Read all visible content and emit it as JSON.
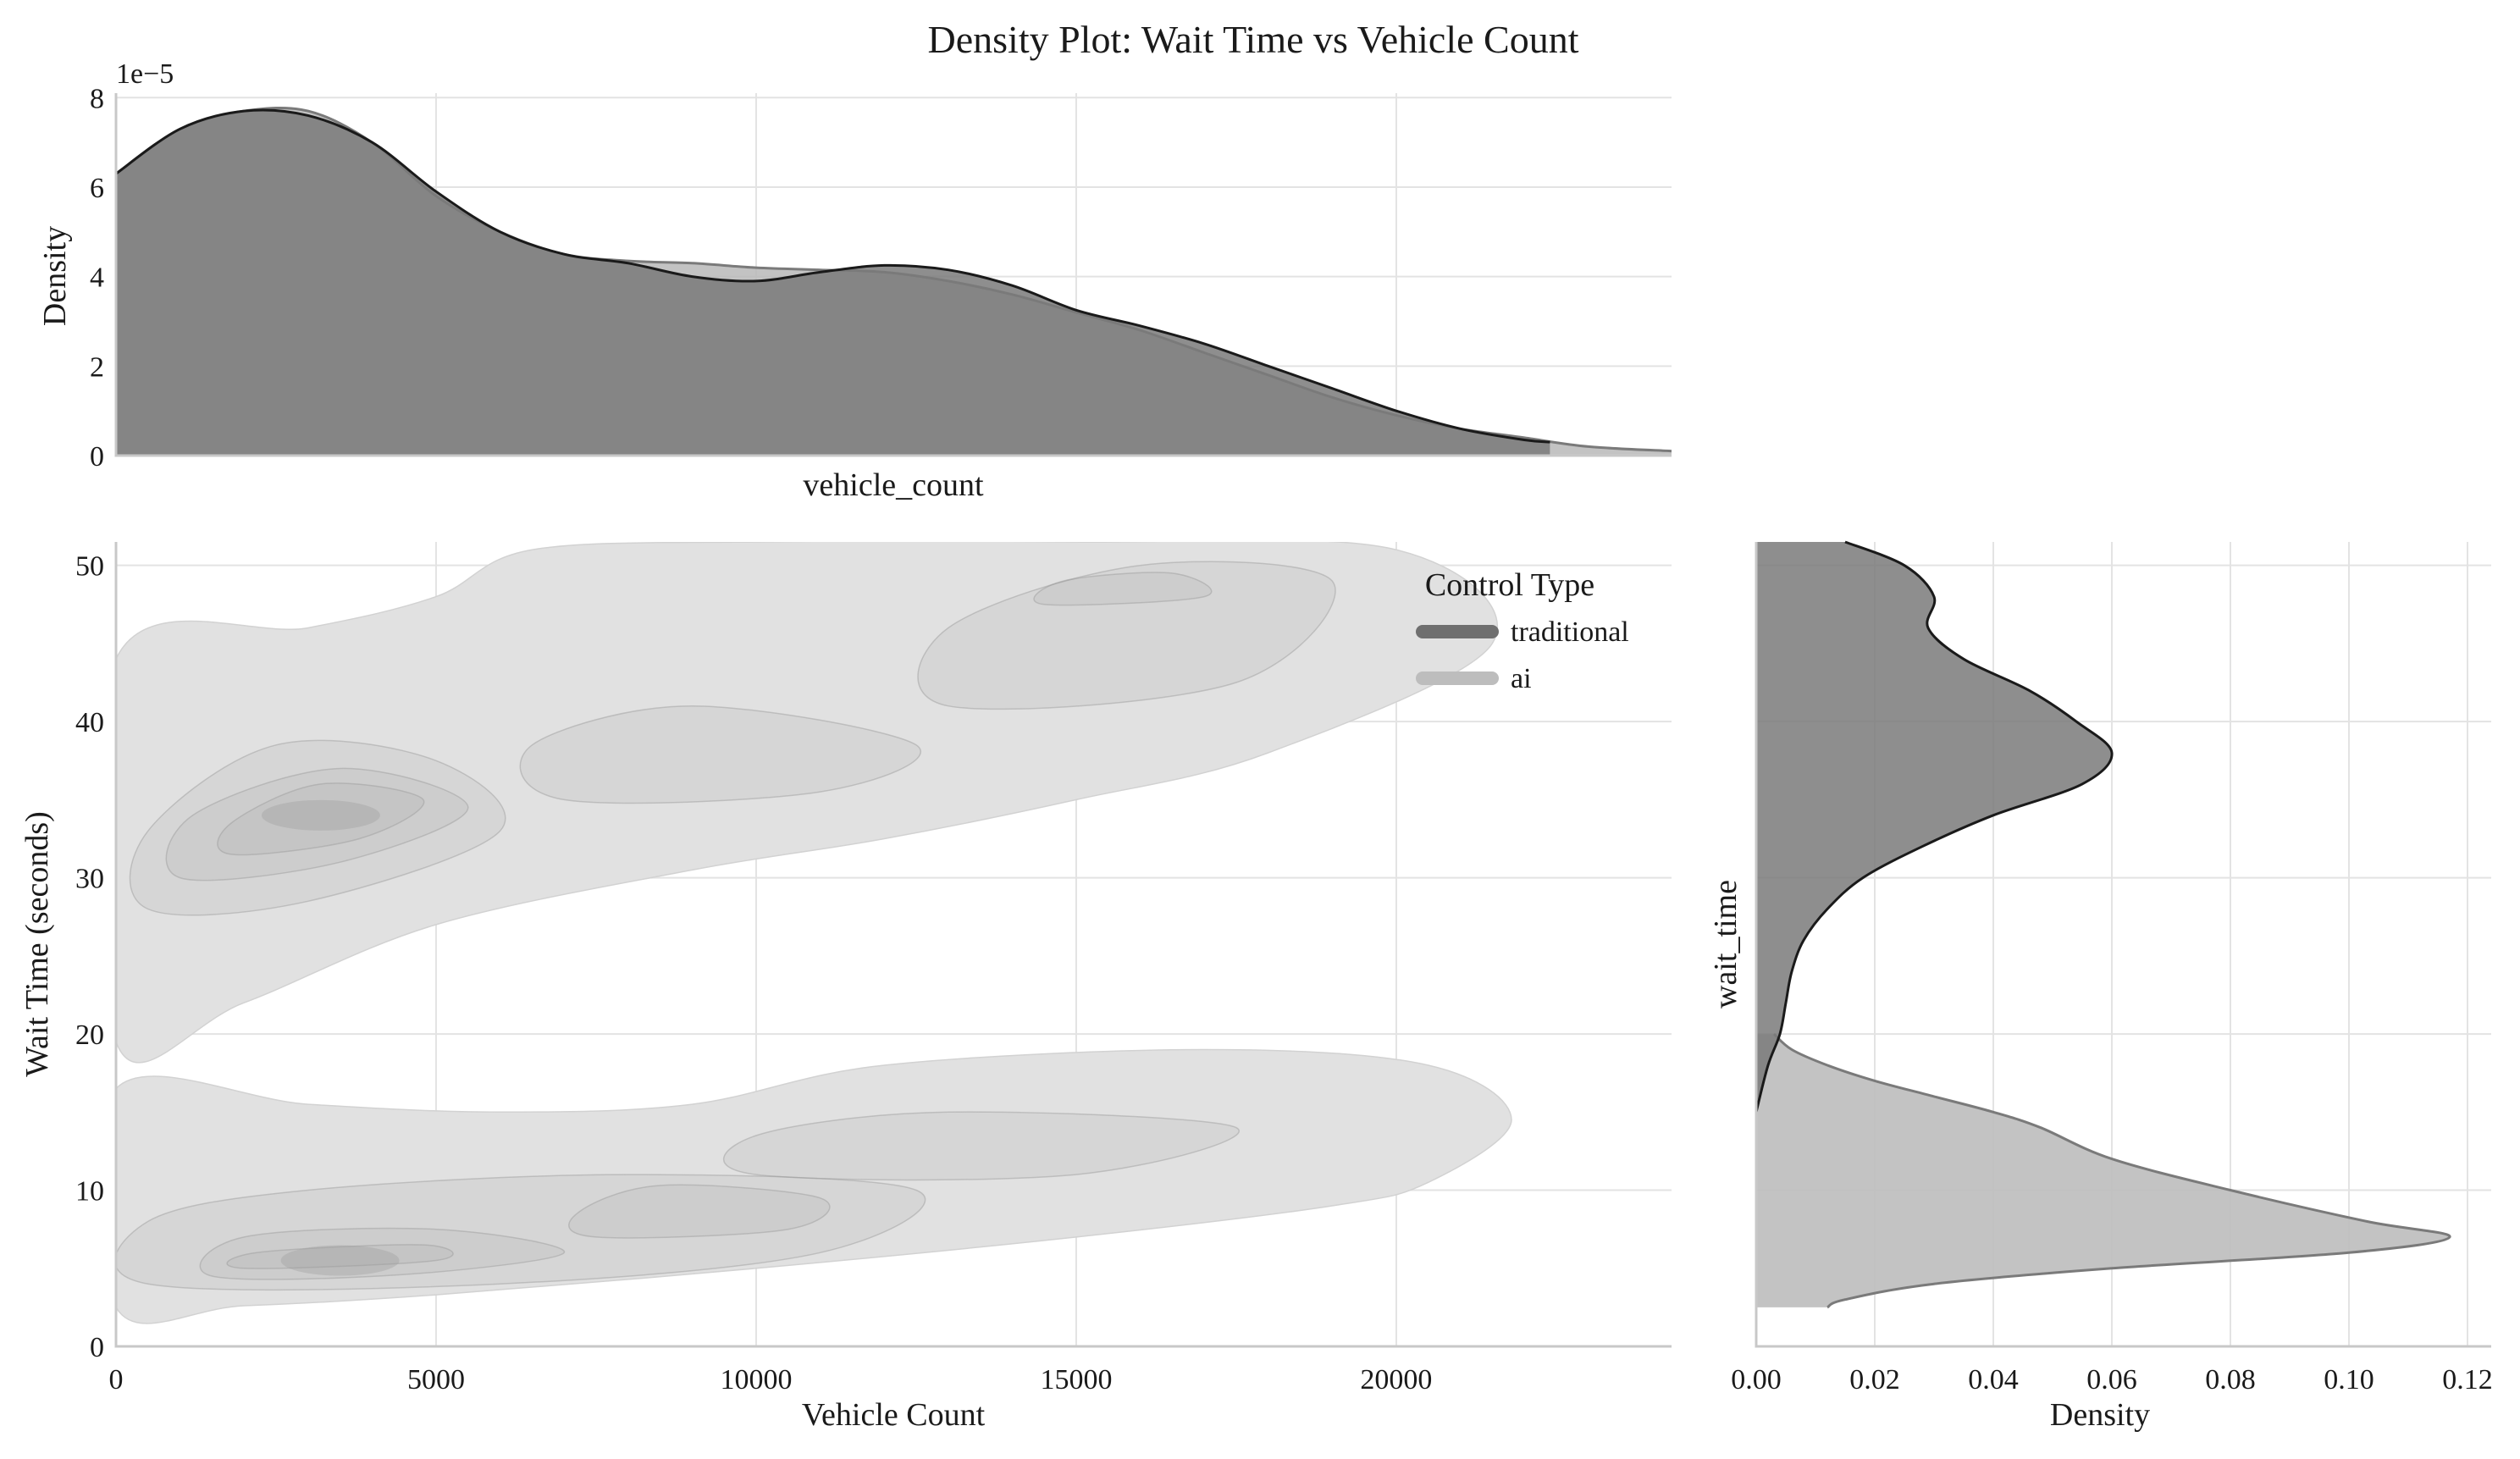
{
  "chart_data": {
    "type": "kde_joint",
    "title": "Density Plot: Wait Time vs Vehicle Count",
    "legend": {
      "title": "Control Type",
      "placement": "upper-right of main panel",
      "entries": [
        {
          "name": "traditional",
          "color": "#6f6f6f"
        },
        {
          "name": "ai",
          "color": "#bdbdbd"
        }
      ]
    },
    "main": {
      "xlabel": "Vehicle Count",
      "ylabel": "Wait Time (seconds)",
      "xlim": [
        0,
        24300
      ],
      "ylim": [
        0,
        51.5
      ],
      "xticks": [
        0,
        5000,
        10000,
        15000,
        20000
      ],
      "xtick_labels": [
        "0",
        "5000",
        "10000",
        "15000",
        "20000"
      ],
      "yticks": [
        0,
        10,
        20,
        30,
        40,
        50
      ],
      "ytick_labels": [
        "0",
        "10",
        "20",
        "30",
        "40",
        "50"
      ],
      "clusters": [
        {
          "series": "traditional",
          "outer_contour": [
            [
              0,
              19.5
            ],
            [
              2000,
              22
            ],
            [
              5000,
              27
            ],
            [
              9000,
              30.5
            ],
            [
              12000,
              32.5
            ],
            [
              15000,
              35
            ],
            [
              18000,
              38
            ],
            [
              21500,
              45
            ],
            [
              20000,
              51
            ],
            [
              15000,
              51.5
            ],
            [
              10000,
              51.5
            ],
            [
              6500,
              51
            ],
            [
              5000,
              48
            ],
            [
              3000,
              46
            ],
            [
              0,
              44
            ]
          ],
          "peak": [
            3200,
            34
          ],
          "levels": [
            [
              [
                500,
                28
              ],
              [
                3000,
                28.5
              ],
              [
                6000,
                33
              ],
              [
                5000,
                37.5
              ],
              [
                2500,
                38.5
              ],
              [
                500,
                33
              ]
            ],
            [
              [
                1000,
                30
              ],
              [
                3500,
                31
              ],
              [
                5500,
                34.5
              ],
              [
                3500,
                37
              ],
              [
                1200,
                34
              ]
            ],
            [
              [
                1800,
                31.5
              ],
              [
                3800,
                32.5
              ],
              [
                4800,
                35
              ],
              [
                3200,
                36
              ],
              [
                1800,
                33.5
              ]
            ],
            [
              [
                7000,
                35
              ],
              [
                11000,
                35.5
              ],
              [
                12500,
                38.5
              ],
              [
                9000,
                41
              ],
              [
                6500,
                38.5
              ]
            ],
            [
              [
                13000,
                41
              ],
              [
                17500,
                42.5
              ],
              [
                19000,
                49
              ],
              [
                16000,
                50
              ],
              [
                13000,
                46
              ]
            ],
            [
              [
                14500,
                47.5
              ],
              [
                17000,
                48
              ],
              [
                16500,
                49.5
              ],
              [
                14800,
                49
              ]
            ]
          ]
        },
        {
          "series": "ai",
          "outer_contour": [
            [
              0,
              2.5
            ],
            [
              2000,
              2.6
            ],
            [
              5000,
              3.3
            ],
            [
              10000,
              5
            ],
            [
              15000,
              7
            ],
            [
              19000,
              9
            ],
            [
              20500,
              10.5
            ],
            [
              21800,
              14.5
            ],
            [
              20500,
              18
            ],
            [
              17000,
              19
            ],
            [
              12000,
              18
            ],
            [
              9000,
              15.5
            ],
            [
              6000,
              15
            ],
            [
              3000,
              15.5
            ],
            [
              0,
              16.5
            ]
          ],
          "peak": [
            3500,
            5.5
          ],
          "levels": [
            [
              [
                500,
                4
              ],
              [
                6000,
                4
              ],
              [
                11000,
                6
              ],
              [
                12500,
                10
              ],
              [
                8000,
                11
              ],
              [
                3000,
                10
              ],
              [
                500,
                8
              ]
            ],
            [
              [
                1500,
                4.5
              ],
              [
                4500,
                4.6
              ],
              [
                7000,
                6
              ],
              [
                5000,
                7.5
              ],
              [
                2000,
                7
              ]
            ],
            [
              [
                2000,
                5
              ],
              [
                5000,
                5.5
              ],
              [
                4800,
                6.5
              ],
              [
                2200,
                6
              ]
            ],
            [
              [
                7500,
                7
              ],
              [
                10500,
                7.5
              ],
              [
                11000,
                9.5
              ],
              [
                8500,
                10.3
              ],
              [
                7200,
                8.5
              ]
            ],
            [
              [
                10000,
                11
              ],
              [
                15000,
                11
              ],
              [
                17500,
                14
              ],
              [
                13000,
                15
              ],
              [
                10000,
                13.5
              ]
            ]
          ]
        }
      ]
    },
    "top_marginal": {
      "xlabel": "vehicle_count",
      "ylabel": "Density",
      "offset_label": "1e−5",
      "yticks": [
        0,
        2,
        4,
        6,
        8
      ],
      "ytick_labels": [
        "0",
        "2",
        "4",
        "6",
        "8"
      ],
      "ylim": [
        0,
        8.1
      ],
      "series": [
        {
          "name": "traditional",
          "x": [
            0,
            1000,
            2000,
            3000,
            4000,
            5000,
            6000,
            7000,
            8000,
            9000,
            10000,
            11000,
            12000,
            13000,
            14000,
            15000,
            16000,
            17000,
            18000,
            19000,
            20000,
            21000,
            22000,
            22400
          ],
          "y": [
            6.3,
            7.3,
            7.7,
            7.6,
            7.0,
            5.9,
            5.0,
            4.5,
            4.3,
            4.0,
            3.9,
            4.1,
            4.25,
            4.15,
            3.8,
            3.25,
            2.9,
            2.5,
            2.0,
            1.5,
            1.0,
            0.6,
            0.35,
            0.3
          ]
        },
        {
          "name": "ai",
          "x": [
            0,
            1000,
            2000,
            3000,
            4000,
            5000,
            6000,
            7000,
            8000,
            9000,
            10000,
            11000,
            12000,
            13000,
            14000,
            15000,
            16000,
            17000,
            18000,
            19000,
            20000,
            21000,
            22000,
            23000,
            24300
          ],
          "y": [
            6.3,
            7.3,
            7.7,
            7.7,
            7.0,
            5.8,
            5.0,
            4.5,
            4.35,
            4.3,
            4.2,
            4.15,
            4.1,
            3.9,
            3.6,
            3.2,
            2.8,
            2.3,
            1.8,
            1.3,
            0.9,
            0.6,
            0.4,
            0.2,
            0.1
          ]
        }
      ]
    },
    "right_marginal": {
      "xlabel": "Density",
      "ylabel": "wait_time",
      "xlim": [
        0,
        0.124
      ],
      "xticks": [
        0.0,
        0.02,
        0.04,
        0.06,
        0.08,
        0.1,
        0.12
      ],
      "xtick_labels": [
        "0.00",
        "0.02",
        "0.04",
        "0.06",
        "0.08",
        "0.10",
        "0.12"
      ],
      "series": [
        {
          "name": "traditional",
          "y": [
            51.5,
            50,
            48,
            46,
            44,
            42,
            40,
            38,
            36,
            34,
            32,
            30,
            28,
            26,
            24,
            22,
            20,
            18,
            15
          ],
          "x": [
            0.015,
            0.025,
            0.03,
            0.029,
            0.035,
            0.046,
            0.054,
            0.06,
            0.055,
            0.04,
            0.028,
            0.018,
            0.012,
            0.008,
            0.006,
            0.005,
            0.004,
            0.002,
            0.0
          ]
        },
        {
          "name": "ai",
          "y": [
            20,
            19,
            18,
            17,
            16,
            15,
            14,
            12,
            10,
            8,
            7,
            6,
            5,
            4,
            3,
            2.5
          ],
          "x": [
            0.003,
            0.006,
            0.012,
            0.02,
            0.03,
            0.04,
            0.048,
            0.06,
            0.08,
            0.103,
            0.117,
            0.1,
            0.06,
            0.03,
            0.015,
            0.012
          ]
        }
      ]
    }
  }
}
